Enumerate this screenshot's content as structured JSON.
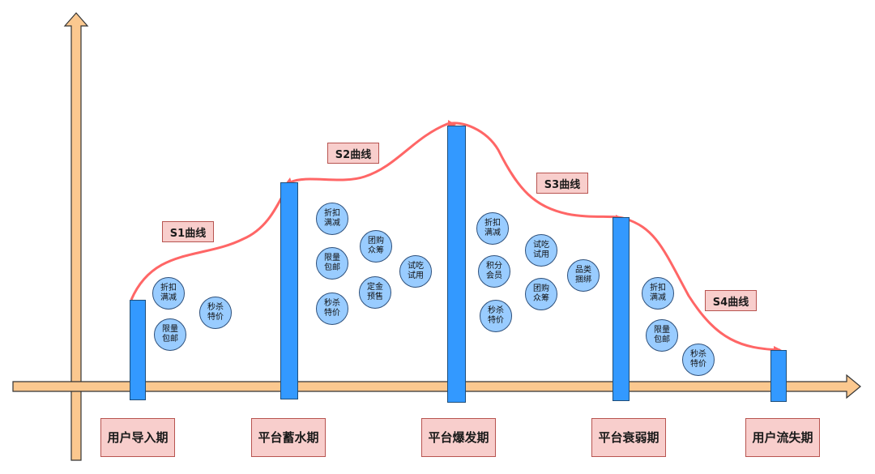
{
  "stages": [
    {
      "label": "用户导入期"
    },
    {
      "label": "平台蓄水期"
    },
    {
      "label": "平台爆发期"
    },
    {
      "label": "平台衰弱期"
    },
    {
      "label": "用户流失期"
    }
  ],
  "curves": [
    {
      "label": "S1曲线"
    },
    {
      "label": "S2曲线"
    },
    {
      "label": "S3曲线"
    },
    {
      "label": "S4曲线"
    }
  ],
  "bubbles": [
    {
      "text": "折扣\n满减"
    },
    {
      "text": "限量\n包邮"
    },
    {
      "text": "秒杀\n特价"
    },
    {
      "text": "折扣\n满减"
    },
    {
      "text": "团购\n众筹"
    },
    {
      "text": "限量\n包邮"
    },
    {
      "text": "试吃\n试用"
    },
    {
      "text": "定金\n预售"
    },
    {
      "text": "秒杀\n特价"
    },
    {
      "text": "折扣\n满减"
    },
    {
      "text": "试吃\n试用"
    },
    {
      "text": "积分\n会员"
    },
    {
      "text": "品类\n捆绑"
    },
    {
      "text": "团购\n众筹"
    },
    {
      "text": "秒杀\n特价"
    },
    {
      "text": "折扣\n满减"
    },
    {
      "text": "限量\n包邮"
    },
    {
      "text": "秒杀\n特价"
    }
  ],
  "colors": {
    "axis": "#fbc88f",
    "axis_stroke": "#333333",
    "bar": "#3399ff",
    "curve": "#ff6666",
    "label_fill": "#f8cecc",
    "bubble_fill": "#99ccff"
  }
}
